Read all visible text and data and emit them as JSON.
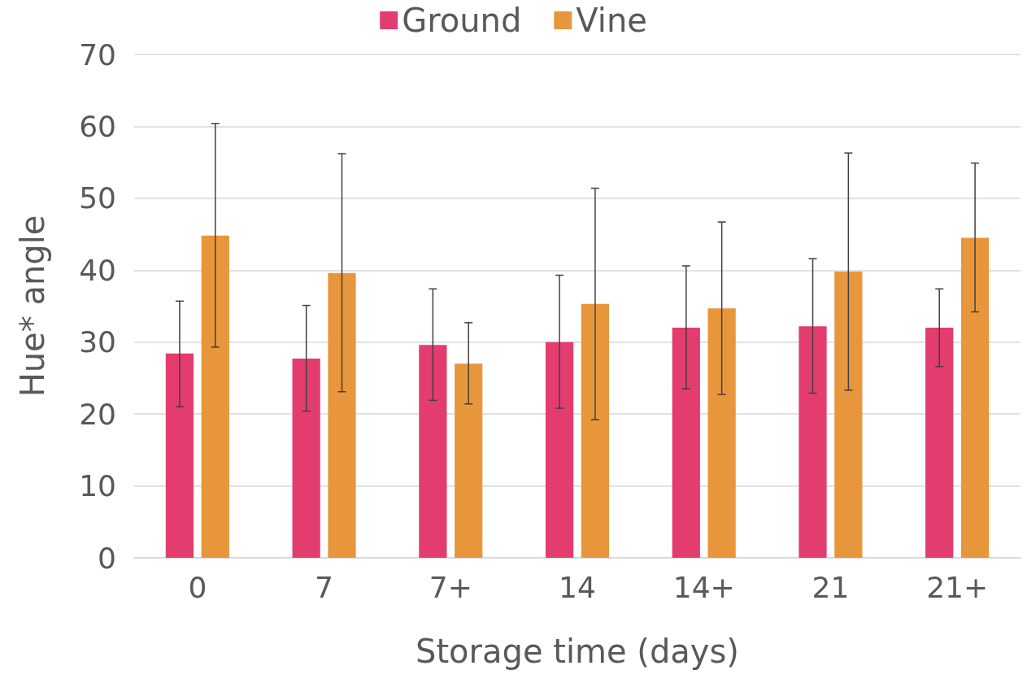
{
  "chart_data": {
    "type": "bar",
    "xlabel": "Storage time (days)",
    "ylabel": "Hue* angle",
    "categories": [
      "0",
      "7",
      "7+",
      "14",
      "14+",
      "21",
      "21+"
    ],
    "series": [
      {
        "name": "Ground",
        "color": "#e33d6f",
        "values": [
          28.4,
          27.7,
          29.6,
          30.0,
          32.0,
          32.2,
          32.0
        ],
        "errors": [
          [
            21.0,
            35.7
          ],
          [
            20.4,
            35.1
          ],
          [
            21.9,
            37.4
          ],
          [
            20.8,
            39.3
          ],
          [
            23.5,
            40.6
          ],
          [
            22.9,
            41.6
          ],
          [
            26.6,
            37.4
          ]
        ]
      },
      {
        "name": "Vine",
        "color": "#e8963c",
        "values": [
          44.8,
          39.6,
          27.0,
          35.3,
          34.7,
          39.8,
          44.5
        ],
        "errors": [
          [
            29.3,
            60.4
          ],
          [
            23.1,
            56.2
          ],
          [
            21.4,
            32.7
          ],
          [
            19.2,
            51.4
          ],
          [
            22.7,
            46.7
          ],
          [
            23.3,
            56.3
          ],
          [
            34.2,
            54.9
          ]
        ]
      }
    ],
    "ylim": [
      0,
      70
    ],
    "yticks": [
      0,
      10,
      20,
      30,
      40,
      50,
      60,
      70
    ],
    "grid": "y",
    "legend": "top"
  }
}
